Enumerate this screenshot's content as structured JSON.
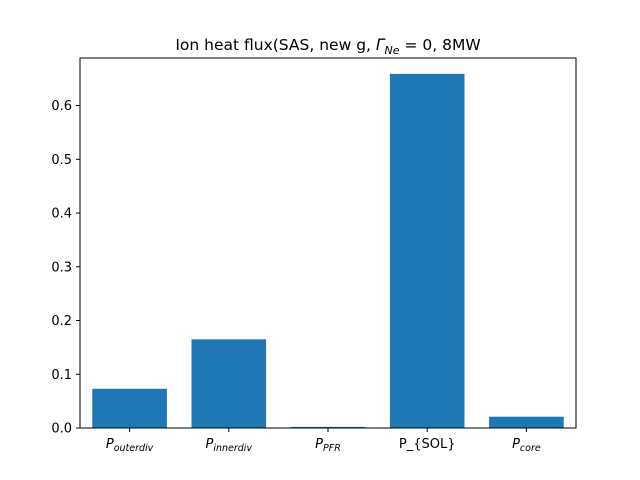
{
  "chart_data": {
    "type": "bar",
    "title": {
      "prefix": "Ion heat flux(SAS, new g, ",
      "math_symbol": "Γ",
      "math_sub": "Ne",
      "math_rest": " = 0",
      "suffix": ", 8MW"
    },
    "categories": [
      {
        "main": "P",
        "sub": "outerdiv"
      },
      {
        "main": "P",
        "sub": "innerdiv"
      },
      {
        "main": "P",
        "sub": "PFR"
      },
      {
        "main": "P_{SOL}",
        "sub": ""
      },
      {
        "main": "P",
        "sub": "core"
      }
    ],
    "values": [
      0.073,
      0.165,
      0.002,
      0.659,
      0.021
    ],
    "ylim": [
      0,
      0.6885
    ],
    "yticks": [
      0.0,
      0.1,
      0.2,
      0.3,
      0.4,
      0.5,
      0.6
    ],
    "ytick_labels": [
      "0.0",
      "0.1",
      "0.2",
      "0.3",
      "0.4",
      "0.5",
      "0.6"
    ],
    "xlabel": "",
    "ylabel": "",
    "bar_color": "#1f77b4",
    "grid": false
  }
}
